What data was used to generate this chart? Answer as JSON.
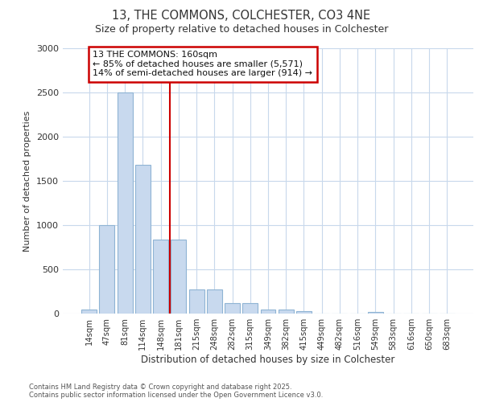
{
  "title1": "13, THE COMMONS, COLCHESTER, CO3 4NE",
  "title2": "Size of property relative to detached houses in Colchester",
  "xlabel": "Distribution of detached houses by size in Colchester",
  "ylabel": "Number of detached properties",
  "categories": [
    "14sqm",
    "47sqm",
    "81sqm",
    "114sqm",
    "148sqm",
    "181sqm",
    "215sqm",
    "248sqm",
    "282sqm",
    "315sqm",
    "349sqm",
    "382sqm",
    "415sqm",
    "449sqm",
    "482sqm",
    "516sqm",
    "549sqm",
    "583sqm",
    "616sqm",
    "650sqm",
    "683sqm"
  ],
  "values": [
    50,
    1000,
    2500,
    1680,
    840,
    840,
    270,
    270,
    120,
    120,
    50,
    50,
    30,
    0,
    0,
    0,
    20,
    0,
    0,
    0,
    0
  ],
  "bar_color": "#c8d9ee",
  "bar_edge_color": "#8fb4d4",
  "vline_index": 4.5,
  "vline_color": "#cc0000",
  "annotation_text": "13 THE COMMONS: 160sqm\n← 85% of detached houses are smaller (5,571)\n14% of semi-detached houses are larger (914) →",
  "annotation_box_edgecolor": "#cc0000",
  "ylim": [
    0,
    3000
  ],
  "yticks": [
    0,
    500,
    1000,
    1500,
    2000,
    2500,
    3000
  ],
  "footer_text": "Contains HM Land Registry data © Crown copyright and database right 2025.\nContains public sector information licensed under the Open Government Licence v3.0.",
  "bg_color": "#ffffff",
  "plot_bg_color": "#ffffff",
  "grid_color": "#c8d8ec"
}
